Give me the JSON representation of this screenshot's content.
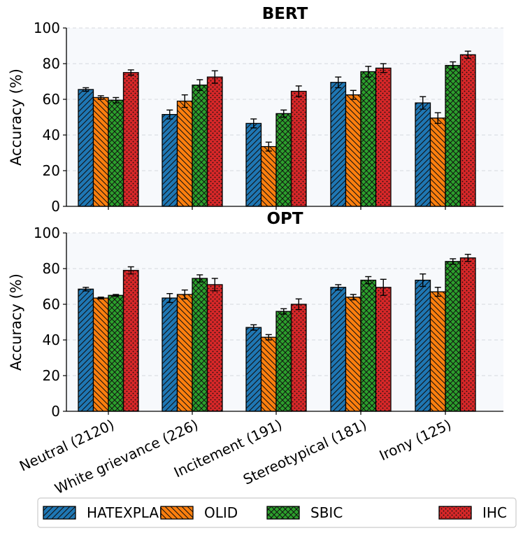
{
  "chart_data": {
    "type": "bar",
    "categories": [
      "Neutral (2120)",
      "White grievance (226)",
      "Incitement (191)",
      "Stereotypical (181)",
      "Irony (125)"
    ],
    "legend": [
      "HATEXPLAIN",
      "OLID",
      "SBIC",
      "IHC"
    ],
    "series_colors": [
      "#1f77b4",
      "#ff7f0e",
      "#2ca02c",
      "#d62728"
    ],
    "series_hatch": [
      "diagonal",
      "backdiagonal",
      "crosshatch",
      "dots"
    ],
    "legend_position": "bottom",
    "panels": [
      {
        "title": "BERT",
        "ylabel": "Accuracy (%)",
        "ylim": [
          0,
          100
        ],
        "yticks": [
          "0",
          "20",
          "40",
          "60",
          "80",
          "100"
        ],
        "grid": true,
        "series": [
          {
            "name": "HATEXPLAIN",
            "values": [
              65.5,
              51.5,
              46.5,
              69.5,
              58.0
            ],
            "errors": [
              1.0,
              2.5,
              2.5,
              3.0,
              3.5
            ]
          },
          {
            "name": "OLID",
            "values": [
              61.0,
              59.0,
              33.5,
              62.5,
              49.5
            ],
            "errors": [
              1.0,
              3.5,
              2.5,
              2.5,
              3.0
            ]
          },
          {
            "name": "SBIC",
            "values": [
              59.5,
              68.0,
              52.0,
              75.5,
              79.0
            ],
            "errors": [
              1.5,
              3.0,
              2.0,
              3.0,
              2.0
            ]
          },
          {
            "name": "IHC",
            "values": [
              75.0,
              72.5,
              64.5,
              77.5,
              85.0
            ],
            "errors": [
              1.5,
              3.5,
              3.0,
              2.5,
              2.0
            ]
          }
        ]
      },
      {
        "title": "OPT",
        "ylabel": "Accuracy (%)",
        "ylim": [
          0,
          100
        ],
        "yticks": [
          "0",
          "20",
          "40",
          "60",
          "80",
          "100"
        ],
        "grid": true,
        "series": [
          {
            "name": "HATEXPLAIN",
            "values": [
              68.5,
              63.5,
              47.0,
              69.5,
              73.5
            ],
            "errors": [
              1.0,
              2.5,
              1.5,
              1.5,
              3.5
            ]
          },
          {
            "name": "OLID",
            "values": [
              63.5,
              65.5,
              41.5,
              64.0,
              67.0
            ],
            "errors": [
              0.5,
              2.5,
              1.5,
              1.5,
              2.5
            ]
          },
          {
            "name": "SBIC",
            "values": [
              65.0,
              74.5,
              56.0,
              73.5,
              84.0
            ],
            "errors": [
              0.5,
              2.0,
              1.5,
              2.0,
              1.5
            ]
          },
          {
            "name": "IHC",
            "values": [
              79.0,
              71.0,
              60.0,
              69.5,
              86.0
            ],
            "errors": [
              2.0,
              3.5,
              3.0,
              4.5,
              2.0
            ]
          }
        ]
      }
    ]
  }
}
